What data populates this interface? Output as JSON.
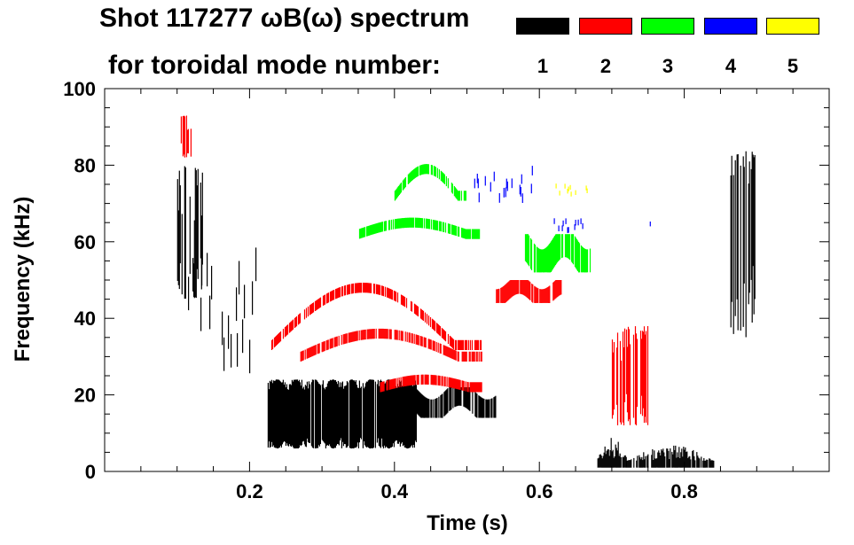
{
  "title_line1": "Shot 117277 ωB(ω) spectrum",
  "title_line2": "for toroidal mode number:",
  "legend": [
    {
      "label": "1",
      "color": "#000000"
    },
    {
      "label": "2",
      "color": "#ff0000"
    },
    {
      "label": "3",
      "color": "#00ff00"
    },
    {
      "label": "4",
      "color": "#0000ff"
    },
    {
      "label": "5",
      "color": "#ffff00"
    }
  ],
  "chart_data": {
    "type": "heatmap",
    "title": "Shot 117277 ωB(ω) spectrum",
    "subtitle": "for toroidal mode number:",
    "xlabel": "Time (s)",
    "ylabel": "Frequency (kHz)",
    "xlim": [
      0.0,
      1.0
    ],
    "ylim": [
      0,
      100
    ],
    "xticks": [
      0.2,
      0.4,
      0.6,
      0.8
    ],
    "xtick_labels": [
      "0.2",
      "0.4",
      "0.6",
      "0.8"
    ],
    "yticks": [
      0,
      20,
      40,
      60,
      80,
      100
    ],
    "ytick_labels": [
      "0",
      "20",
      "40",
      "60",
      "80",
      "100"
    ],
    "legend_title": "toroidal mode number",
    "features": [
      {
        "mode": 1,
        "t0": 0.1,
        "t1": 0.135,
        "f0": 45,
        "f1": 80,
        "curve": "spike"
      },
      {
        "mode": 1,
        "t0": 0.115,
        "t1": 0.21,
        "f0": 25,
        "f1": 60,
        "curve": "sparse"
      },
      {
        "mode": 1,
        "t0": 0.225,
        "t1": 0.43,
        "f0": 6,
        "f1": 24,
        "curve": "bursts"
      },
      {
        "mode": 1,
        "t0": 0.43,
        "t1": 0.54,
        "f0": 14,
        "f1": 22,
        "curve": "band"
      },
      {
        "mode": 1,
        "t0": 0.68,
        "t1": 0.72,
        "f0": 1,
        "f1": 9,
        "curve": "blob"
      },
      {
        "mode": 1,
        "t0": 0.72,
        "t1": 0.84,
        "f0": 1,
        "f1": 7,
        "curve": "blob"
      },
      {
        "mode": 1,
        "t0": 0.86,
        "t1": 0.9,
        "f0": 35,
        "f1": 84,
        "curve": "spike"
      },
      {
        "mode": 2,
        "t0": 0.105,
        "t1": 0.12,
        "f0": 82,
        "f1": 93,
        "curve": "spike"
      },
      {
        "mode": 2,
        "t0": 0.23,
        "t1": 0.52,
        "f0": 33,
        "f1": 48,
        "curve": "arc"
      },
      {
        "mode": 2,
        "t0": 0.27,
        "t1": 0.52,
        "f0": 30,
        "f1": 36,
        "curve": "arc"
      },
      {
        "mode": 2,
        "t0": 0.38,
        "t1": 0.52,
        "f0": 22,
        "f1": 24,
        "curve": "arc"
      },
      {
        "mode": 2,
        "t0": 0.54,
        "t1": 0.63,
        "f0": 44,
        "f1": 50,
        "curve": "band"
      },
      {
        "mode": 2,
        "t0": 0.7,
        "t1": 0.75,
        "f0": 12,
        "f1": 38,
        "curve": "spike"
      },
      {
        "mode": 3,
        "t0": 0.35,
        "t1": 0.52,
        "f0": 62,
        "f1": 65,
        "curve": "arc"
      },
      {
        "mode": 3,
        "t0": 0.4,
        "t1": 0.5,
        "f0": 72,
        "f1": 79,
        "curve": "arc"
      },
      {
        "mode": 3,
        "t0": 0.58,
        "t1": 0.67,
        "f0": 52,
        "f1": 62,
        "curve": "band"
      },
      {
        "mode": 4,
        "t0": 0.51,
        "t1": 0.59,
        "f0": 70,
        "f1": 80,
        "curve": "sparse"
      },
      {
        "mode": 4,
        "t0": 0.62,
        "t1": 0.66,
        "f0": 62,
        "f1": 68,
        "curve": "sparse"
      },
      {
        "mode": 4,
        "t0": 0.745,
        "t1": 0.755,
        "f0": 61,
        "f1": 66,
        "curve": "sparse"
      },
      {
        "mode": 5,
        "t0": 0.62,
        "t1": 0.67,
        "f0": 71,
        "f1": 76,
        "curve": "sparse"
      }
    ]
  }
}
